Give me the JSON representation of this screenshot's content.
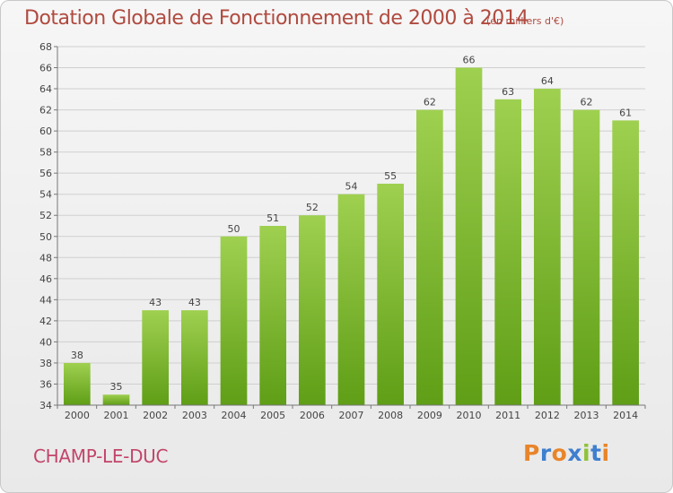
{
  "header": {
    "title": "Dotation Globale de Fonctionnement de 2000 à 2014",
    "subtitle": "(en milliers d'€)"
  },
  "commune": "CHAMP-LE-DUC",
  "logo": {
    "text": "Proxiti",
    "letters": [
      "P",
      "r",
      "o",
      "x",
      "i",
      "t",
      "i"
    ]
  },
  "colors": {
    "title": "#b04a3f",
    "commune": "#c2456a",
    "bar_top": "#9fd050",
    "bar_bottom": "#5f9e16",
    "grid": "#cfcfcf"
  },
  "chart_data": {
    "type": "bar",
    "categories": [
      "2000",
      "2001",
      "2002",
      "2003",
      "2004",
      "2005",
      "2006",
      "2007",
      "2008",
      "2009",
      "2010",
      "2011",
      "2012",
      "2013",
      "2014"
    ],
    "values": [
      38,
      35,
      43,
      43,
      50,
      51,
      52,
      54,
      55,
      62,
      66,
      63,
      64,
      62,
      61
    ],
    "ylim": [
      34,
      68
    ],
    "yticks": [
      34,
      36,
      38,
      40,
      42,
      44,
      46,
      48,
      50,
      52,
      54,
      56,
      58,
      60,
      62,
      64,
      66,
      68
    ],
    "grid": true,
    "data_labels": true,
    "title": "Dotation Globale de Fonctionnement de 2000 à 2014",
    "xlabel": "",
    "ylabel": ""
  }
}
